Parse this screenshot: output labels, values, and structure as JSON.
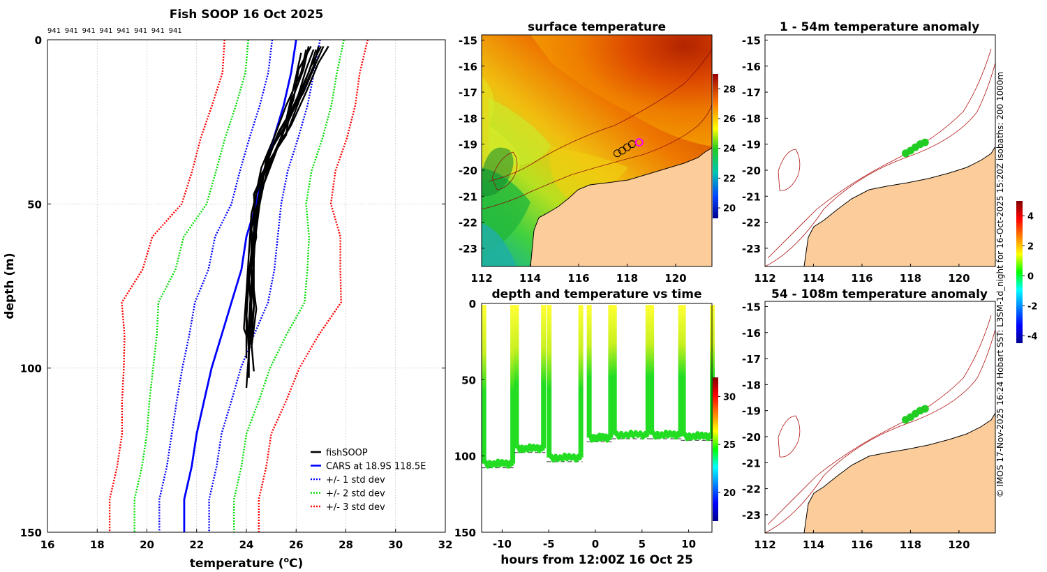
{
  "chart_data": [
    {
      "id": "profile",
      "type": "line",
      "title": "Fish SOOP 16 Oct 2025",
      "xlabel": "temperature",
      "xlabel_unit_pre": "(",
      "xlabel_unit_sup": "o",
      "xlabel_unit_post": "C)",
      "ylabel": "depth (m)",
      "xlim": [
        16,
        32
      ],
      "ylim": [
        0,
        150
      ],
      "y_reversed": true,
      "xticks": [
        16,
        18,
        20,
        22,
        24,
        26,
        28,
        30,
        32
      ],
      "yticks": [
        0,
        50,
        100,
        150
      ],
      "grid": true,
      "cast_labels": [
        "941",
        "941",
        "941",
        "941",
        "941",
        "941",
        "941",
        "941"
      ],
      "depth_levels": [
        0,
        10,
        20,
        30,
        40,
        50,
        60,
        70,
        80,
        90,
        100,
        110,
        120,
        130,
        140,
        150
      ],
      "cars_mean": [
        26.0,
        25.8,
        25.5,
        25.1,
        24.7,
        24.4,
        24.0,
        23.8,
        23.4,
        23.0,
        22.6,
        22.3,
        22.0,
        21.8,
        21.5,
        21.5
      ],
      "cars_std": [
        1.0,
        1.0,
        1.0,
        1.0,
        1.0,
        1.0,
        1.2,
        1.3,
        1.4,
        1.3,
        1.2,
        1.1,
        1.0,
        1.0,
        1.0,
        1.0
      ],
      "cars_std_shape": [
        0.96,
        0.92,
        0.96,
        0.98,
        0.96,
        1.0,
        1.05,
        1.02,
        1.05,
        1.0,
        0.98,
        1.0,
        1.0,
        1.0,
        1.0,
        1.0
      ],
      "fish_profiles": [
        {
          "t": [
            27.0,
            26.6,
            26.1,
            25.5,
            24.9,
            24.5,
            24.3,
            24.3,
            24.3,
            24.2,
            24.3
          ],
          "d": [
            2,
            8,
            18,
            28,
            38,
            50,
            62,
            72,
            82,
            92,
            101
          ]
        },
        {
          "t": [
            26.8,
            26.5,
            25.9,
            25.2,
            24.7,
            24.4,
            24.2,
            24.2,
            24.1,
            24.1
          ],
          "d": [
            3,
            10,
            20,
            30,
            40,
            52,
            64,
            74,
            86,
            95
          ]
        },
        {
          "t": [
            26.5,
            26.3,
            25.8,
            25.6,
            24.9,
            24.3,
            24.4,
            24.1,
            24.2,
            24.1
          ],
          "d": [
            2,
            9,
            19,
            29,
            37,
            47,
            60,
            72,
            84,
            96
          ]
        },
        {
          "t": [
            27.3,
            26.9,
            26.4,
            25.8,
            25.1,
            24.6,
            24.4,
            24.2,
            24.4,
            24.2
          ],
          "d": [
            2,
            7,
            16,
            26,
            35,
            46,
            58,
            70,
            82,
            94
          ]
        },
        {
          "t": [
            26.2,
            26.0,
            25.7,
            25.4,
            24.6,
            24.2,
            24.1,
            24.0,
            23.9,
            24.0
          ],
          "d": [
            4,
            11,
            21,
            31,
            41,
            53,
            65,
            77,
            88,
            90
          ]
        },
        {
          "t": [
            26.7,
            26.4,
            26.0,
            25.3,
            24.8,
            24.5,
            24.3,
            24.1,
            24.0,
            24.1,
            24.0
          ],
          "d": [
            3,
            9,
            19,
            28,
            37,
            48,
            59,
            71,
            83,
            95,
            106
          ]
        },
        {
          "t": [
            26.9,
            26.7,
            26.2,
            25.7,
            25.0,
            24.4,
            24.2,
            24.2,
            24.3,
            24.1
          ],
          "d": [
            2,
            8,
            17,
            27,
            36,
            47,
            58,
            69,
            81,
            93
          ]
        },
        {
          "t": [
            26.4,
            26.2,
            25.6,
            25.1,
            24.6,
            24.3,
            24.3,
            24.1,
            24.0,
            24.0
          ],
          "d": [
            3,
            10,
            20,
            30,
            39,
            50,
            61,
            73,
            85,
            97
          ]
        },
        {
          "t": [
            26.6,
            26.1,
            25.9,
            25.5,
            24.8,
            24.6,
            24.2,
            24.3,
            24.2,
            24.1,
            24.1
          ],
          "d": [
            2,
            9,
            18,
            27,
            36,
            46,
            57,
            68,
            80,
            92,
            103
          ]
        },
        {
          "t": [
            27.1,
            26.8,
            26.3,
            25.6,
            25.2,
            24.7,
            24.4,
            24.3,
            24.2,
            24.2
          ],
          "d": [
            2,
            7,
            16,
            25,
            34,
            44,
            55,
            67,
            79,
            91
          ]
        }
      ],
      "legend": [
        {
          "label": "fishSOOP",
          "color": "#000000",
          "style": "solid"
        },
        {
          "label": "CARS at 18.9S 118.5E",
          "color": "#0000ff",
          "style": "solid"
        },
        {
          "label": "+/- 1 std dev",
          "color": "#0000ff",
          "style": "dotted"
        },
        {
          "label": "+/- 2 std dev",
          "color": "#00dd00",
          "style": "dotted"
        },
        {
          "label": "+/- 3 std dev",
          "color": "#ff0000",
          "style": "dotted"
        }
      ],
      "legend_position": "bottom-right"
    },
    {
      "id": "sst_map",
      "type": "heatmap",
      "title": "surface temperature",
      "xlim": [
        112,
        121.5
      ],
      "ylim": [
        -23.7,
        -14.8
      ],
      "xticks": [
        112,
        114,
        116,
        118,
        120
      ],
      "yticks": [
        -15,
        -16,
        -17,
        -18,
        -19,
        -20,
        -21,
        -22,
        -23
      ],
      "colorbar": {
        "min": 19.3,
        "max": 29,
        "ticks": [
          20,
          22,
          24,
          26,
          28
        ]
      },
      "track_points": [
        [
          117.6,
          -19.35
        ],
        [
          117.8,
          -19.25
        ],
        [
          118.0,
          -19.12
        ],
        [
          118.2,
          -19.0
        ],
        [
          118.5,
          -18.93
        ]
      ]
    },
    {
      "id": "depth_time",
      "type": "scatter",
      "title": "depth and temperature vs time",
      "xlabel": "hours from 12:00Z 16 Oct 25",
      "xlim": [
        -12.2,
        12.5
      ],
      "ylim": [
        0,
        150
      ],
      "y_reversed": true,
      "xticks": [
        -10,
        -5,
        0,
        5,
        10
      ],
      "yticks": [
        0,
        50,
        100,
        150
      ],
      "colorbar": {
        "min": 17,
        "max": 32,
        "ticks": [
          20,
          25,
          30
        ]
      },
      "dives": [
        {
          "start": -12.0,
          "end": -8.9,
          "bottom": 105
        },
        {
          "start": -8.5,
          "end": -5.6,
          "bottom": 95
        },
        {
          "start": -5.0,
          "end": -1.6,
          "bottom": 101
        },
        {
          "start": -0.7,
          "end": 1.6,
          "bottom": 88
        },
        {
          "start": 2.0,
          "end": 5.6,
          "bottom": 86
        },
        {
          "start": 6.0,
          "end": 9.1,
          "bottom": 86
        },
        {
          "start": 9.4,
          "end": 12.5,
          "bottom": 87
        }
      ]
    },
    {
      "id": "anom_shallow",
      "type": "scatter",
      "title": "1 - 54m temperature anomaly",
      "xlim": [
        112,
        121.5
      ],
      "ylim": [
        -23.7,
        -14.8
      ],
      "xticks": [
        112,
        114,
        116,
        118,
        120
      ],
      "yticks": [
        -15,
        -16,
        -17,
        -18,
        -19,
        -20,
        -21,
        -22,
        -23
      ],
      "points": [
        [
          117.8,
          -19.35
        ],
        [
          118.0,
          -19.25
        ],
        [
          118.2,
          -19.12
        ],
        [
          118.4,
          -19.0
        ],
        [
          118.6,
          -18.93
        ]
      ]
    },
    {
      "id": "anom_deep",
      "type": "scatter",
      "title": "54 - 108m temperature anomaly",
      "xlim": [
        112,
        121.5
      ],
      "ylim": [
        -23.7,
        -14.8
      ],
      "xticks": [
        112,
        114,
        116,
        118,
        120
      ],
      "yticks": [
        -15,
        -16,
        -17,
        -18,
        -19,
        -20,
        -21,
        -22,
        -23
      ],
      "points": [
        [
          117.8,
          -19.35
        ],
        [
          118.0,
          -19.25
        ],
        [
          118.2,
          -19.12
        ],
        [
          118.4,
          -19.0
        ],
        [
          118.6,
          -18.93
        ]
      ]
    },
    {
      "id": "anom_colorbar",
      "type": "heatmap",
      "colorbar": {
        "min": -4.5,
        "max": 5,
        "ticks": [
          4,
          2,
          0,
          -2,
          -4
        ]
      }
    }
  ],
  "credit": "© IMOS 17-Nov-2025 16:24 Hobart SST: L3SM-1d_night for 16-Oct-2025 15:20Z isobaths: 200  1000m",
  "colors": {
    "fish": "#000000",
    "cars": "#0000ff",
    "std1": "#0000ff",
    "std2": "#00dd00",
    "std3": "#ff0000",
    "land": "#fccc9a",
    "isobath": "#b01010",
    "anom_point": "#22cc22",
    "track_highlight": "#ff00ff"
  }
}
